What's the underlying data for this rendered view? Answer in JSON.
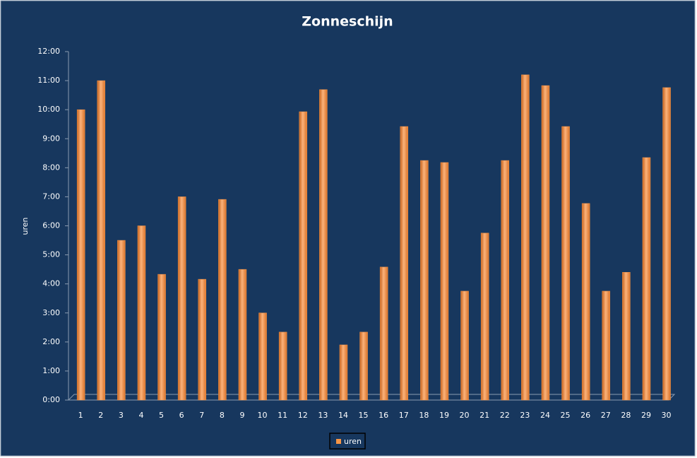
{
  "chart_data": {
    "type": "bar",
    "title": "Zonneschijn",
    "y_label": "uren",
    "categories": [
      "1",
      "2",
      "3",
      "4",
      "5",
      "6",
      "7",
      "8",
      "9",
      "10",
      "11",
      "12",
      "13",
      "14",
      "15",
      "16",
      "17",
      "18",
      "19",
      "20",
      "21",
      "22",
      "23",
      "24",
      "25",
      "26",
      "27",
      "28",
      "29",
      "30"
    ],
    "series": [
      {
        "name": "uren",
        "color": "#f79646",
        "values": [
          10.0,
          11.0,
          5.5,
          6.0,
          4.33,
          7.0,
          4.16,
          6.91,
          4.5,
          3.0,
          2.34,
          9.93,
          10.69,
          1.9,
          2.34,
          4.58,
          9.42,
          8.25,
          8.18,
          3.75,
          5.75,
          8.25,
          11.2,
          10.83,
          9.42,
          6.77,
          3.75,
          4.4,
          8.35,
          10.76
        ]
      }
    ],
    "ylim": [
      0,
      12
    ],
    "yticks": [
      {
        "value": 0,
        "label": "0:00"
      },
      {
        "value": 1,
        "label": "1:00"
      },
      {
        "value": 2,
        "label": "2:00"
      },
      {
        "value": 3,
        "label": "3:00"
      },
      {
        "value": 4,
        "label": "4:00"
      },
      {
        "value": 5,
        "label": "5:00"
      },
      {
        "value": 6,
        "label": "6:00"
      },
      {
        "value": 7,
        "label": "7:00"
      },
      {
        "value": 8,
        "label": "8:00"
      },
      {
        "value": 9,
        "label": "9:00"
      },
      {
        "value": 10,
        "label": "10:00"
      },
      {
        "value": 11,
        "label": "11:00"
      },
      {
        "value": 12,
        "label": "12:00"
      }
    ],
    "grid": false,
    "legend": "bottom"
  }
}
